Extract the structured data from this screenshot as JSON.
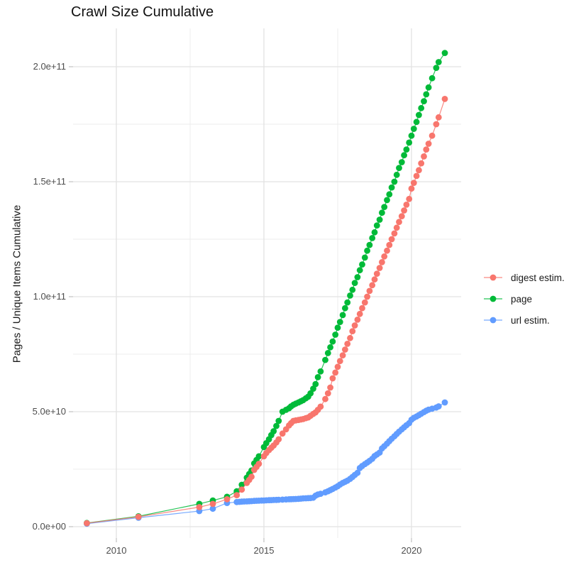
{
  "chart_data": {
    "type": "line",
    "title": "Crawl Size Cumulative",
    "xlabel": "",
    "ylabel": "Pages / Unique Items Cumulative",
    "legend_position": "right-center",
    "background_color": "#FFFFFF",
    "grid": {
      "major_color": "#e2e2e2",
      "minor_color": "#ececec",
      "tick_color": "#c2c2c2"
    },
    "value_unit": "billions (1e9) of pages / unique items",
    "x_axis": {
      "range": [
        2008.5,
        2021.7
      ],
      "ticks": [
        {
          "label": "2010",
          "year": 2010
        },
        {
          "label": "2015",
          "year": 2015
        },
        {
          "label": "2020",
          "year": 2020
        }
      ],
      "minor": [
        2012.5,
        2017.5
      ]
    },
    "y_axis": {
      "range": [
        -5,
        217
      ],
      "ticks": [
        {
          "label": "0.0e+00",
          "value": 0
        },
        {
          "label": "5.0e+10",
          "value": 50
        },
        {
          "label": "1.0e+11",
          "value": 100
        },
        {
          "label": "1.5e+11",
          "value": 150
        },
        {
          "label": "2.0e+11",
          "value": 200
        }
      ],
      "minor": [
        25,
        75,
        125,
        175
      ]
    },
    "draw_order": [
      "url estim.",
      "page",
      "digest estim."
    ],
    "series": [
      {
        "name": "digest estim.",
        "color": "#F8766D",
        "points": [
          [
            2009.0,
            1.5
          ],
          [
            2010.75,
            4.3
          ],
          [
            2012.81,
            8.5
          ],
          [
            2013.27,
            9.9
          ],
          [
            2013.75,
            11.9
          ],
          [
            2014.08,
            13.7
          ],
          [
            2014.25,
            16.1
          ],
          [
            2014.42,
            19.0
          ],
          [
            2014.5,
            20.3
          ],
          [
            2014.58,
            21.7
          ],
          [
            2014.67,
            24.7
          ],
          [
            2014.75,
            26.0
          ],
          [
            2014.83,
            27.3
          ],
          [
            2015.0,
            30.6
          ],
          [
            2015.08,
            32.0
          ],
          [
            2015.17,
            33.3
          ],
          [
            2015.25,
            34.3
          ],
          [
            2015.33,
            35.3
          ],
          [
            2015.42,
            36.6
          ],
          [
            2015.5,
            38.0
          ],
          [
            2015.63,
            40.5
          ],
          [
            2015.75,
            42.3
          ],
          [
            2015.85,
            44.0
          ],
          [
            2015.92,
            45.0
          ],
          [
            2016.0,
            46.0
          ],
          [
            2016.08,
            46.2
          ],
          [
            2016.17,
            46.4
          ],
          [
            2016.25,
            46.6
          ],
          [
            2016.33,
            46.8
          ],
          [
            2016.42,
            47.2
          ],
          [
            2016.5,
            47.5
          ],
          [
            2016.58,
            48.2
          ],
          [
            2016.67,
            49.0
          ],
          [
            2016.75,
            49.7
          ],
          [
            2016.83,
            50.8
          ],
          [
            2016.92,
            52.2
          ],
          [
            2017.08,
            55.5
          ],
          [
            2017.17,
            58.0
          ],
          [
            2017.25,
            60.5
          ],
          [
            2017.33,
            64.5
          ],
          [
            2017.42,
            67.0
          ],
          [
            2017.5,
            69.5
          ],
          [
            2017.58,
            72.0
          ],
          [
            2017.67,
            74.5
          ],
          [
            2017.75,
            77.0
          ],
          [
            2017.83,
            79.5
          ],
          [
            2017.92,
            82.0
          ],
          [
            2018.0,
            85.0
          ],
          [
            2018.08,
            87.5
          ],
          [
            2018.17,
            90.0
          ],
          [
            2018.25,
            92.5
          ],
          [
            2018.33,
            95.0
          ],
          [
            2018.42,
            97.5
          ],
          [
            2018.5,
            100.0
          ],
          [
            2018.58,
            102.5
          ],
          [
            2018.67,
            105.0
          ],
          [
            2018.75,
            107.5
          ],
          [
            2018.83,
            110.0
          ],
          [
            2018.92,
            112.5
          ],
          [
            2019.0,
            115.0
          ],
          [
            2019.08,
            117.5
          ],
          [
            2019.17,
            120.0
          ],
          [
            2019.25,
            122.5
          ],
          [
            2019.33,
            125.0
          ],
          [
            2019.42,
            127.5
          ],
          [
            2019.5,
            130.0
          ],
          [
            2019.58,
            132.5
          ],
          [
            2019.67,
            135.0
          ],
          [
            2019.75,
            137.5
          ],
          [
            2019.83,
            140.0
          ],
          [
            2019.92,
            142.5
          ],
          [
            2020.0,
            147.0
          ],
          [
            2020.08,
            149.5
          ],
          [
            2020.17,
            152.5
          ],
          [
            2020.25,
            155.0
          ],
          [
            2020.33,
            158.0
          ],
          [
            2020.42,
            161.0
          ],
          [
            2020.5,
            164.0
          ],
          [
            2020.58,
            166.5
          ],
          [
            2020.7,
            170.0
          ],
          [
            2020.84,
            175.0
          ],
          [
            2020.92,
            178.0
          ],
          [
            2021.13,
            186.0
          ]
        ]
      },
      {
        "name": "page",
        "color": "#00BA38",
        "points": [
          [
            2009.0,
            1.6
          ],
          [
            2010.75,
            4.5
          ],
          [
            2012.81,
            9.9
          ],
          [
            2013.27,
            11.4
          ],
          [
            2013.75,
            13.0
          ],
          [
            2014.08,
            15.4
          ],
          [
            2014.25,
            18.2
          ],
          [
            2014.42,
            21.3
          ],
          [
            2014.5,
            22.9
          ],
          [
            2014.58,
            24.4
          ],
          [
            2014.67,
            27.5
          ],
          [
            2014.75,
            29.0
          ],
          [
            2014.83,
            30.6
          ],
          [
            2015.0,
            34.6
          ],
          [
            2015.08,
            36.3
          ],
          [
            2015.17,
            38.0
          ],
          [
            2015.25,
            39.8
          ],
          [
            2015.33,
            41.5
          ],
          [
            2015.42,
            43.8
          ],
          [
            2015.5,
            46.0
          ],
          [
            2015.63,
            50.0
          ],
          [
            2015.75,
            50.8
          ],
          [
            2015.85,
            51.5
          ],
          [
            2015.92,
            52.3
          ],
          [
            2016.0,
            53.0
          ],
          [
            2016.08,
            53.5
          ],
          [
            2016.17,
            54.0
          ],
          [
            2016.25,
            54.5
          ],
          [
            2016.33,
            55.0
          ],
          [
            2016.42,
            55.8
          ],
          [
            2016.5,
            56.5
          ],
          [
            2016.58,
            58.0
          ],
          [
            2016.67,
            60.0
          ],
          [
            2016.75,
            62.0
          ],
          [
            2016.83,
            65.0
          ],
          [
            2016.92,
            67.5
          ],
          [
            2017.08,
            72.5
          ],
          [
            2017.17,
            75.5
          ],
          [
            2017.25,
            78.0
          ],
          [
            2017.33,
            80.5
          ],
          [
            2017.42,
            83.5
          ],
          [
            2017.5,
            86.5
          ],
          [
            2017.58,
            89.0
          ],
          [
            2017.67,
            92.0
          ],
          [
            2017.75,
            95.0
          ],
          [
            2017.83,
            97.5
          ],
          [
            2017.92,
            100.5
          ],
          [
            2018.0,
            103.0
          ],
          [
            2018.08,
            106.0
          ],
          [
            2018.17,
            108.5
          ],
          [
            2018.25,
            111.5
          ],
          [
            2018.33,
            114.0
          ],
          [
            2018.42,
            117.0
          ],
          [
            2018.5,
            120.0
          ],
          [
            2018.58,
            122.5
          ],
          [
            2018.67,
            125.5
          ],
          [
            2018.75,
            128.0
          ],
          [
            2018.83,
            131.0
          ],
          [
            2018.92,
            133.5
          ],
          [
            2019.0,
            136.5
          ],
          [
            2019.08,
            139.0
          ],
          [
            2019.17,
            142.0
          ],
          [
            2019.25,
            144.5
          ],
          [
            2019.33,
            147.5
          ],
          [
            2019.42,
            150.0
          ],
          [
            2019.5,
            153.0
          ],
          [
            2019.58,
            156.0
          ],
          [
            2019.67,
            158.5
          ],
          [
            2019.75,
            161.5
          ],
          [
            2019.83,
            164.0
          ],
          [
            2019.92,
            167.0
          ],
          [
            2020.0,
            170.0
          ],
          [
            2020.08,
            173.0
          ],
          [
            2020.17,
            176.0
          ],
          [
            2020.25,
            179.0
          ],
          [
            2020.33,
            182.0
          ],
          [
            2020.42,
            185.0
          ],
          [
            2020.5,
            188.0
          ],
          [
            2020.58,
            191.0
          ],
          [
            2020.7,
            195.0
          ],
          [
            2020.84,
            199.5
          ],
          [
            2020.92,
            202.0
          ],
          [
            2021.13,
            206.0
          ]
        ]
      },
      {
        "name": "url estim.",
        "color": "#619CFF",
        "points": [
          [
            2009.0,
            1.3
          ],
          [
            2010.75,
            3.9
          ],
          [
            2012.81,
            6.8
          ],
          [
            2013.27,
            7.8
          ],
          [
            2013.75,
            10.3
          ],
          [
            2014.08,
            10.7
          ],
          [
            2014.17,
            10.8
          ],
          [
            2014.25,
            10.9
          ],
          [
            2014.33,
            10.95
          ],
          [
            2014.42,
            11.0
          ],
          [
            2014.5,
            11.05
          ],
          [
            2014.58,
            11.1
          ],
          [
            2014.67,
            11.2
          ],
          [
            2014.75,
            11.25
          ],
          [
            2014.83,
            11.3
          ],
          [
            2014.92,
            11.35
          ],
          [
            2015.0,
            11.4
          ],
          [
            2015.08,
            11.45
          ],
          [
            2015.17,
            11.5
          ],
          [
            2015.25,
            11.55
          ],
          [
            2015.33,
            11.6
          ],
          [
            2015.42,
            11.65
          ],
          [
            2015.5,
            11.7
          ],
          [
            2015.63,
            11.75
          ],
          [
            2015.75,
            11.85
          ],
          [
            2015.85,
            11.9
          ],
          [
            2015.92,
            11.95
          ],
          [
            2016.0,
            12.0
          ],
          [
            2016.08,
            12.05
          ],
          [
            2016.17,
            12.1
          ],
          [
            2016.25,
            12.2
          ],
          [
            2016.33,
            12.3
          ],
          [
            2016.42,
            12.35
          ],
          [
            2016.5,
            12.4
          ],
          [
            2016.58,
            12.45
          ],
          [
            2016.67,
            12.6
          ],
          [
            2016.75,
            13.5
          ],
          [
            2016.83,
            14.0
          ],
          [
            2016.92,
            14.3
          ],
          [
            2017.08,
            14.9
          ],
          [
            2017.17,
            15.4
          ],
          [
            2017.25,
            15.9
          ],
          [
            2017.33,
            16.4
          ],
          [
            2017.42,
            17.0
          ],
          [
            2017.5,
            17.6
          ],
          [
            2017.58,
            18.3
          ],
          [
            2017.67,
            19.0
          ],
          [
            2017.75,
            19.5
          ],
          [
            2017.83,
            20.0
          ],
          [
            2017.92,
            20.8
          ],
          [
            2018.0,
            21.6
          ],
          [
            2018.08,
            22.5
          ],
          [
            2018.17,
            23.4
          ],
          [
            2018.25,
            25.5
          ],
          [
            2018.33,
            26.4
          ],
          [
            2018.42,
            27.2
          ],
          [
            2018.5,
            27.9
          ],
          [
            2018.58,
            28.6
          ],
          [
            2018.67,
            29.5
          ],
          [
            2018.75,
            30.7
          ],
          [
            2018.83,
            31.4
          ],
          [
            2018.92,
            32.2
          ],
          [
            2019.0,
            34.0
          ],
          [
            2019.08,
            35.0
          ],
          [
            2019.17,
            36.1
          ],
          [
            2019.25,
            37.2
          ],
          [
            2019.33,
            38.2
          ],
          [
            2019.42,
            39.3
          ],
          [
            2019.5,
            40.3
          ],
          [
            2019.58,
            41.3
          ],
          [
            2019.67,
            42.3
          ],
          [
            2019.75,
            43.2
          ],
          [
            2019.83,
            44.1
          ],
          [
            2019.92,
            45.0
          ],
          [
            2020.0,
            46.5
          ],
          [
            2020.08,
            47.3
          ],
          [
            2020.17,
            47.9
          ],
          [
            2020.25,
            48.5
          ],
          [
            2020.33,
            49.1
          ],
          [
            2020.42,
            49.8
          ],
          [
            2020.5,
            50.4
          ],
          [
            2020.58,
            50.9
          ],
          [
            2020.7,
            51.3
          ],
          [
            2020.84,
            51.8
          ],
          [
            2020.92,
            52.3
          ],
          [
            2021.13,
            54.0
          ]
        ]
      }
    ]
  }
}
